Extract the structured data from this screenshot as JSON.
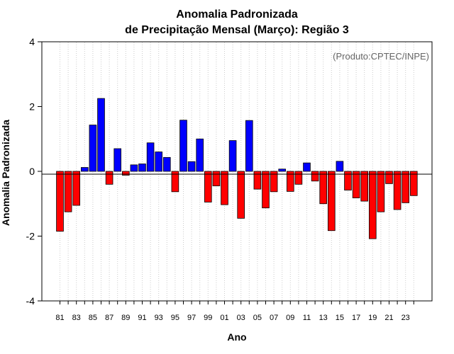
{
  "chart_data": {
    "type": "bar",
    "title_line1": "Anomalia Padronizada",
    "title_line2": "de Precipitação Mensal (Março): Região 3",
    "xlabel": "Ano",
    "ylabel": "Anomalia Padronizada",
    "credit": "(Produto:CPTEC/INPE)",
    "ylim": [
      -4,
      4
    ],
    "yticks": [
      -4,
      -2,
      0,
      2,
      4
    ],
    "ytick_labels": [
      "-4",
      "-2",
      "0",
      "2",
      "4"
    ],
    "grid": "vertical dotted",
    "positive_color": "#0000ff",
    "negative_color": "#ff0000",
    "categories": [
      "81",
      "82",
      "83",
      "84",
      "85",
      "86",
      "87",
      "88",
      "89",
      "90",
      "91",
      "92",
      "93",
      "94",
      "95",
      "96",
      "97",
      "98",
      "99",
      "00",
      "01",
      "02",
      "03",
      "04",
      "05",
      "06",
      "07",
      "08",
      "09",
      "10",
      "11",
      "12",
      "13",
      "14",
      "15",
      "16",
      "17",
      "18",
      "19",
      "20",
      "21",
      "22",
      "23",
      "24"
    ],
    "xtick_labels_shown": [
      "81",
      "83",
      "85",
      "87",
      "89",
      "91",
      "93",
      "95",
      "97",
      "99",
      "01",
      "03",
      "05",
      "07",
      "09",
      "11",
      "13",
      "15",
      "17",
      "19",
      "21",
      "23"
    ],
    "values": [
      -1.85,
      -1.25,
      -1.05,
      0.12,
      1.43,
      2.25,
      -0.4,
      0.7,
      -0.12,
      0.2,
      0.23,
      0.88,
      0.6,
      0.43,
      -0.63,
      1.58,
      0.3,
      1.0,
      -0.95,
      -0.45,
      -1.03,
      0.95,
      -1.45,
      1.57,
      -0.55,
      -1.13,
      -0.63,
      0.07,
      -0.62,
      -0.4,
      0.26,
      -0.3,
      -1.0,
      -1.83,
      0.31,
      -0.58,
      -0.82,
      -0.92,
      -2.08,
      -1.25,
      -0.38,
      -1.18,
      -0.97,
      -0.75
    ]
  }
}
